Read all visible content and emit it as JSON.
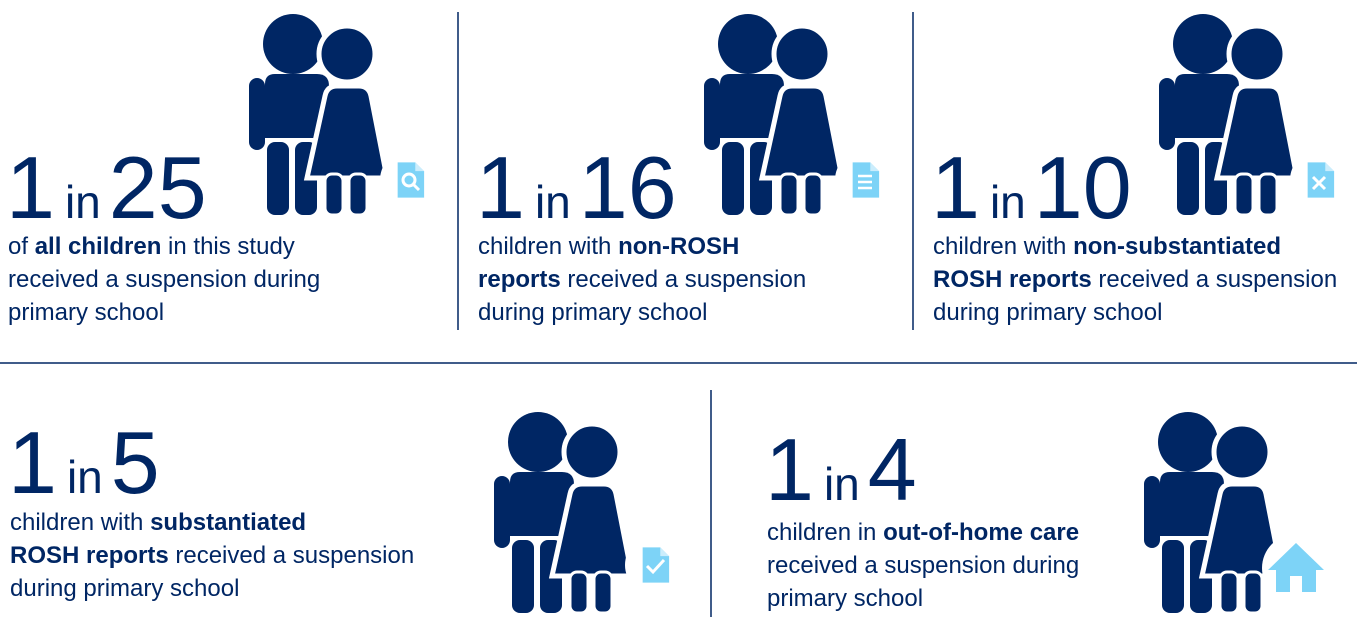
{
  "stats": [
    {
      "numerator": 1,
      "connector": "in",
      "denominator": 25,
      "lines": [
        [
          {
            "text": "of ",
            "bold": false
          },
          {
            "text": "all children",
            "bold": true
          },
          {
            "text": " in this study",
            "bold": false
          }
        ],
        [
          {
            "text": "received a suspension during",
            "bold": false
          }
        ],
        [
          {
            "text": "primary school",
            "bold": false
          }
        ]
      ]
    },
    {
      "numerator": 1,
      "connector": "in",
      "denominator": 16,
      "lines": [
        [
          {
            "text": "children with ",
            "bold": false
          },
          {
            "text": "non-ROSH",
            "bold": true
          }
        ],
        [
          {
            "text": "reports",
            "bold": true
          },
          {
            "text": " received a suspension",
            "bold": false
          }
        ],
        [
          {
            "text": "during primary school",
            "bold": false
          }
        ]
      ]
    },
    {
      "numerator": 1,
      "connector": "in",
      "denominator": 10,
      "lines": [
        [
          {
            "text": "children with ",
            "bold": false
          },
          {
            "text": "non-substantiated",
            "bold": true
          }
        ],
        [
          {
            "text": "ROSH reports",
            "bold": true
          },
          {
            "text": " received a suspension",
            "bold": false
          }
        ],
        [
          {
            "text": "during primary school",
            "bold": false
          }
        ]
      ]
    },
    {
      "numerator": 1,
      "connector": "in",
      "denominator": 5,
      "lines": [
        [
          {
            "text": "children with ",
            "bold": false
          },
          {
            "text": "substantiated",
            "bold": true
          }
        ],
        [
          {
            "text": "ROSH reports",
            "bold": true
          },
          {
            "text": " received a suspension",
            "bold": false
          }
        ],
        [
          {
            "text": "during primary school",
            "bold": false
          }
        ]
      ]
    },
    {
      "numerator": 1,
      "connector": "in",
      "denominator": 4,
      "lines": [
        [
          {
            "text": "children in ",
            "bold": false
          },
          {
            "text": "out-of-home care",
            "bold": true
          }
        ],
        [
          {
            "text": "received a suspension during",
            "bold": false
          }
        ],
        [
          {
            "text": "primary school",
            "bold": false
          }
        ]
      ]
    }
  ]
}
